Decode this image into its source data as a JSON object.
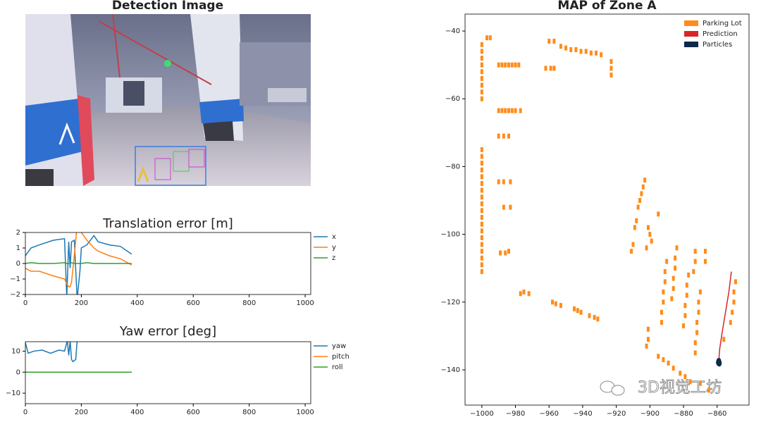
{
  "detection_image": {
    "title": "Detection Image"
  },
  "watermark": "3D视觉工坊",
  "chart_data": [
    {
      "type": "line",
      "title": "Translation error [m]",
      "x": [
        0,
        20,
        50,
        100,
        140,
        148,
        155,
        160,
        165,
        175,
        185,
        195,
        200,
        220,
        245,
        260,
        300,
        340,
        380
      ],
      "series": [
        {
          "name": "x",
          "color": "#1f77b4",
          "values": [
            0.5,
            1.0,
            1.2,
            1.5,
            1.6,
            -2.2,
            1.4,
            -0.3,
            1.4,
            1.5,
            -2.3,
            -0.5,
            1.0,
            1.2,
            1.8,
            1.4,
            1.2,
            1.1,
            0.6
          ]
        },
        {
          "name": "y",
          "color": "#ff7f0e",
          "values": [
            -0.3,
            -0.5,
            -0.5,
            -0.8,
            -1.0,
            -1.3,
            -1.5,
            -1.5,
            -1.2,
            0.5,
            2.5,
            2.2,
            2.0,
            1.5,
            1.0,
            0.8,
            0.5,
            0.3,
            -0.1
          ]
        },
        {
          "name": "z",
          "color": "#2ca02c",
          "values": [
            0,
            0.05,
            0,
            0,
            0.05,
            0,
            0,
            0,
            0.05,
            0,
            0,
            0,
            0,
            0.05,
            0,
            0,
            0,
            0,
            0
          ]
        }
      ],
      "xlim": [
        0,
        1020
      ],
      "xticks": [
        0,
        200,
        400,
        600,
        800,
        1000
      ],
      "ylim": [
        -2,
        2
      ],
      "yticks": [
        {
          "value": -2,
          "label": "−2"
        },
        {
          "value": -1,
          "label": "−1"
        },
        0,
        1,
        2
      ],
      "legend": "outside right"
    },
    {
      "type": "line",
      "title": "Yaw error [deg]",
      "series": [
        {
          "name": "yaw",
          "color": "#1f77b4",
          "x": [
            0,
            10,
            30,
            60,
            90,
            120,
            140,
            150,
            155,
            160,
            165,
            170,
            180,
            185
          ],
          "values": [
            14,
            9,
            10,
            10.5,
            9,
            10.5,
            10,
            15,
            8,
            15,
            6,
            5,
            6,
            15
          ]
        },
        {
          "name": "pitch",
          "color": "#ff7f0e",
          "x": [
            0,
            380
          ],
          "values": [
            0,
            0
          ]
        },
        {
          "name": "roll",
          "color": "#2ca02c",
          "x": [
            0,
            380
          ],
          "values": [
            0,
            0
          ]
        }
      ],
      "xlim": [
        0,
        1020
      ],
      "xticks": [
        0,
        200,
        400,
        600,
        800,
        1000
      ],
      "ylim": [
        -15,
        14.5
      ],
      "yticks": [
        {
          "value": -10,
          "label": "−10"
        },
        0,
        10
      ],
      "legend": "outside right"
    },
    {
      "type": "scatter",
      "title": "MAP of Zone A",
      "series": [
        {
          "name": "Parking Lot",
          "color": "#ff8c1a",
          "style": "rect",
          "x": [
            -1000,
            -1000,
            -1000,
            -1000,
            -1000,
            -1000,
            -1000,
            -1000,
            -1000,
            -1000,
            -1000,
            -1000,
            -1000,
            -1000,
            -1000,
            -1000,
            -1000,
            -1000,
            -1000,
            -1000,
            -1000,
            -1000,
            -1000,
            -1000,
            -1000,
            -1000,
            -1000,
            -1000,
            -997,
            -995,
            -990,
            -988,
            -986,
            -984,
            -982,
            -980,
            -978,
            -990,
            -988,
            -986,
            -984,
            -982,
            -980,
            -977,
            -990,
            -987,
            -984,
            -990,
            -987,
            -983,
            -987,
            -983,
            -989,
            -986,
            -984,
            -977,
            -975,
            -972,
            -958,
            -956,
            -953,
            -945,
            -943,
            -941,
            -936,
            -933,
            -931,
            -960,
            -957,
            -953,
            -950,
            -947,
            -944,
            -941,
            -938,
            -935,
            -932,
            -929,
            -962,
            -959,
            -957,
            -923,
            -923,
            -923,
            -903,
            -904,
            -905,
            -906,
            -907,
            -908,
            -909,
            -910,
            -911,
            -895,
            -901,
            -900,
            -899,
            -902,
            -890,
            -891,
            -891,
            -892,
            -892,
            -893,
            -893,
            -884,
            -885,
            -885,
            -886,
            -886,
            -887,
            -877,
            -878,
            -878,
            -879,
            -879,
            -880,
            -873,
            -873,
            -874,
            -870,
            -871,
            -871,
            -872,
            -872,
            -873,
            -873,
            -867,
            -867,
            -849,
            -850,
            -850,
            -851,
            -852,
            -856,
            -901,
            -901,
            -902,
            -895,
            -892,
            -889,
            -886,
            -882,
            -879,
            -876,
            -870,
            -865
          ],
          "values": [
            -44,
            -46,
            -48,
            -50,
            -52,
            -54,
            -56,
            -58,
            -60,
            -75,
            -77,
            -79,
            -81,
            -83,
            -85,
            -87,
            -89,
            -91,
            -93,
            -95,
            -97,
            -99,
            -101,
            -103,
            -105,
            -107,
            -109,
            -111,
            -42,
            -42,
            -50,
            -50,
            -50,
            -50,
            -50,
            -50,
            -50,
            -63.5,
            -63.5,
            -63.5,
            -63.5,
            -63.5,
            -63.5,
            -63.5,
            -71,
            -71,
            -71,
            -84.5,
            -84.5,
            -84.5,
            -92,
            -92,
            -105.5,
            -105.5,
            -105,
            -117.5,
            -117,
            -117.5,
            -120,
            -120.5,
            -121,
            -122,
            -122.5,
            -123,
            -124,
            -124.5,
            -125,
            -43,
            -43,
            -44.5,
            -45,
            -45.5,
            -45.5,
            -46,
            -46,
            -46.5,
            -46.5,
            -47,
            -51,
            -51,
            -51,
            -49,
            -51,
            -53,
            -84,
            -86,
            -88,
            -90,
            -92,
            -96,
            -98,
            -103,
            -105,
            -94,
            -98,
            -100,
            -102,
            -104,
            -108,
            -111,
            -114,
            -117,
            -120,
            -123,
            -126,
            -104,
            -107,
            -110,
            -113,
            -116,
            -119,
            -112,
            -115,
            -118,
            -121,
            -124,
            -127,
            -105,
            -108,
            -111,
            -117,
            -120,
            -123,
            -126,
            -129,
            -132,
            -135,
            -105,
            -108,
            -114,
            -117,
            -120,
            -123,
            -126,
            -131,
            -128,
            -131,
            -133,
            -136,
            -137,
            -138,
            -139.5,
            -141,
            -142,
            -143.5,
            -144,
            -146
          ]
        },
        {
          "name": "Prediction",
          "color": "#d62728",
          "style": "line",
          "x": [
            -851.5,
            -853,
            -855,
            -857,
            -858.5,
            -859
          ],
          "values": [
            -111,
            -117,
            -123,
            -129,
            -134,
            -137.5
          ]
        },
        {
          "name": "Particles",
          "color": "#0d2a4a",
          "style": "dot",
          "x": [
            -859,
            -858.7,
            -859.2
          ],
          "values": [
            -137.5,
            -138,
            -137.8
          ]
        }
      ],
      "xlim": [
        -1010,
        -841
      ],
      "xticks": [
        {
          "value": -1000,
          "label": "−1000"
        },
        {
          "value": -980,
          "label": "−980"
        },
        {
          "value": -960,
          "label": "−960"
        },
        {
          "value": -940,
          "label": "−940"
        },
        {
          "value": -920,
          "label": "−920"
        },
        {
          "value": -900,
          "label": "−900"
        },
        {
          "value": -880,
          "label": "−880"
        },
        {
          "value": -860,
          "label": "−860"
        }
      ],
      "ylim": [
        -150.4,
        -35
      ],
      "yticks": [
        {
          "value": -40,
          "label": "−40"
        },
        {
          "value": -60,
          "label": "−60"
        },
        {
          "value": -80,
          "label": "−80"
        },
        {
          "value": -100,
          "label": "−100"
        },
        {
          "value": -120,
          "label": "−120"
        },
        {
          "value": -140,
          "label": "−140"
        }
      ],
      "legend": "upper right"
    }
  ]
}
